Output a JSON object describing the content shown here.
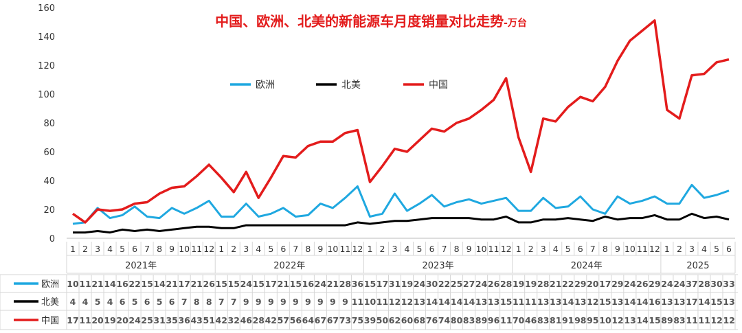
{
  "chart_data": {
    "type": "line",
    "title": "中国、欧洲、北美的新能源车月度销量对比走势",
    "title_suffix": "-万台",
    "ylim": [
      0,
      160
    ],
    "yticks": [
      0,
      20,
      40,
      60,
      80,
      100,
      120,
      140,
      160
    ],
    "grid": false,
    "legend_placement": "top-center",
    "years": [
      {
        "label": "2021年",
        "months": 12
      },
      {
        "label": "2022年",
        "months": 12
      },
      {
        "label": "2023年",
        "months": 12
      },
      {
        "label": "2024年",
        "months": 12
      },
      {
        "label": "2025",
        "months": 6
      }
    ],
    "series": [
      {
        "name": "欧洲",
        "color": "#1FA8E0",
        "values": [
          10,
          11,
          21,
          14,
          16,
          22,
          15,
          14,
          21,
          17,
          21,
          26,
          15,
          15,
          24,
          15,
          17,
          21,
          15,
          16,
          24,
          21,
          28,
          36,
          15,
          17,
          31,
          19,
          24,
          30,
          22,
          25,
          27,
          24,
          26,
          28,
          19,
          19,
          28,
          21,
          22,
          29,
          20,
          17,
          29,
          24,
          26,
          29,
          24,
          24,
          37,
          28,
          30,
          33
        ]
      },
      {
        "name": "北美",
        "color": "#000000",
        "values": [
          4,
          4,
          5,
          4,
          6,
          5,
          6,
          5,
          6,
          7,
          8,
          8,
          7,
          7,
          9,
          9,
          9,
          9,
          9,
          9,
          9,
          9,
          9,
          11,
          10,
          11,
          12,
          12,
          13,
          14,
          14,
          14,
          14,
          13,
          13,
          15,
          11,
          11,
          13,
          13,
          14,
          13,
          12,
          15,
          13,
          14,
          14,
          16,
          13,
          13,
          17,
          14,
          15,
          13
        ]
      },
      {
        "name": "中国",
        "color": "#E31C1C",
        "values": [
          17,
          11,
          20,
          19,
          20,
          24,
          25,
          31,
          35,
          36,
          43,
          51,
          42,
          32,
          46,
          28,
          42,
          57,
          56,
          64,
          67,
          67,
          73,
          75,
          39,
          50,
          62,
          60,
          68,
          76,
          74,
          80,
          83,
          89,
          96,
          111,
          70,
          46,
          83,
          81,
          91,
          98,
          95,
          105,
          123,
          137,
          144,
          151,
          89,
          83,
          113,
          114,
          122,
          124
        ]
      }
    ]
  }
}
